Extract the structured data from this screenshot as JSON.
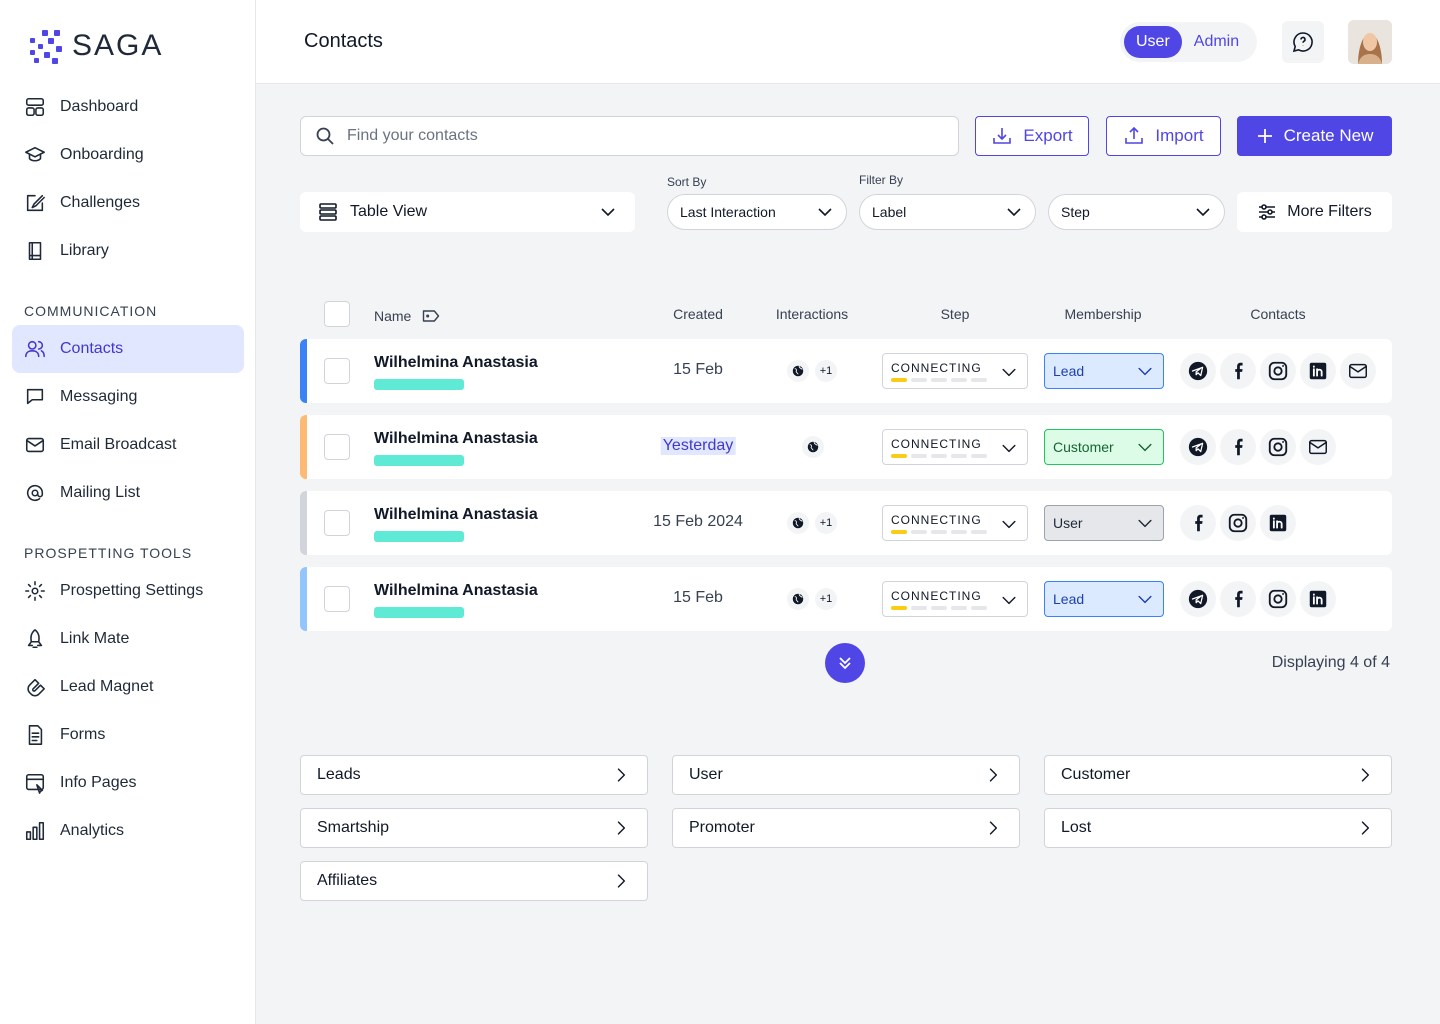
{
  "brand": "SAGA",
  "nav": {
    "main": [
      "Dashboard",
      "Onboarding",
      "Challenges",
      "Library"
    ],
    "sections": [
      {
        "title": "COMMUNICATION",
        "items": [
          "Contacts",
          "Messaging",
          "Email Broadcast",
          "Mailing List"
        ]
      },
      {
        "title": "PROSPETTING TOOLS",
        "items": [
          "Prospetting Settings",
          "Link Mate",
          "Lead Magnet",
          "Forms",
          "Info Pages",
          "Analytics"
        ]
      }
    ]
  },
  "header": {
    "title": "Contacts",
    "roles": [
      "User",
      "Admin"
    ]
  },
  "toolbar": {
    "search_placeholder": "Find your contacts",
    "export": "Export",
    "import": "Import",
    "create": "Create New"
  },
  "filters": {
    "view": "Table View",
    "sort_label": "Sort By",
    "sort_value": "Last Interaction",
    "filter_label": "Filter By",
    "filter_value": "Label",
    "step": "Step",
    "more": "More Filters"
  },
  "table": {
    "columns": [
      "Name",
      "Created",
      "Interactions",
      "Step",
      "Membership",
      "Contacts"
    ],
    "rows": [
      {
        "name": "Wilhelmina Anastasia",
        "created": "15 Feb",
        "interactions_extra": "+1",
        "step": "CONNECTING",
        "membership": "Lead"
      },
      {
        "name": "Wilhelmina Anastasia",
        "created": "Yesterday",
        "step": "CONNECTING",
        "membership": "Customer"
      },
      {
        "name": "Wilhelmina Anastasia",
        "created": "15 Feb 2024",
        "interactions_extra": "+1",
        "step": "CONNECTING",
        "membership": "User"
      },
      {
        "name": "Wilhelmina Anastasia",
        "created": "15 Feb",
        "interactions_extra": "+1",
        "step": "CONNECTING",
        "membership": "Lead"
      }
    ]
  },
  "footer": "Displaying 4 of 4",
  "segments": [
    "Leads",
    "User",
    "Customer",
    "Smartship",
    "Promoter",
    "Lost",
    "Affiliates"
  ]
}
